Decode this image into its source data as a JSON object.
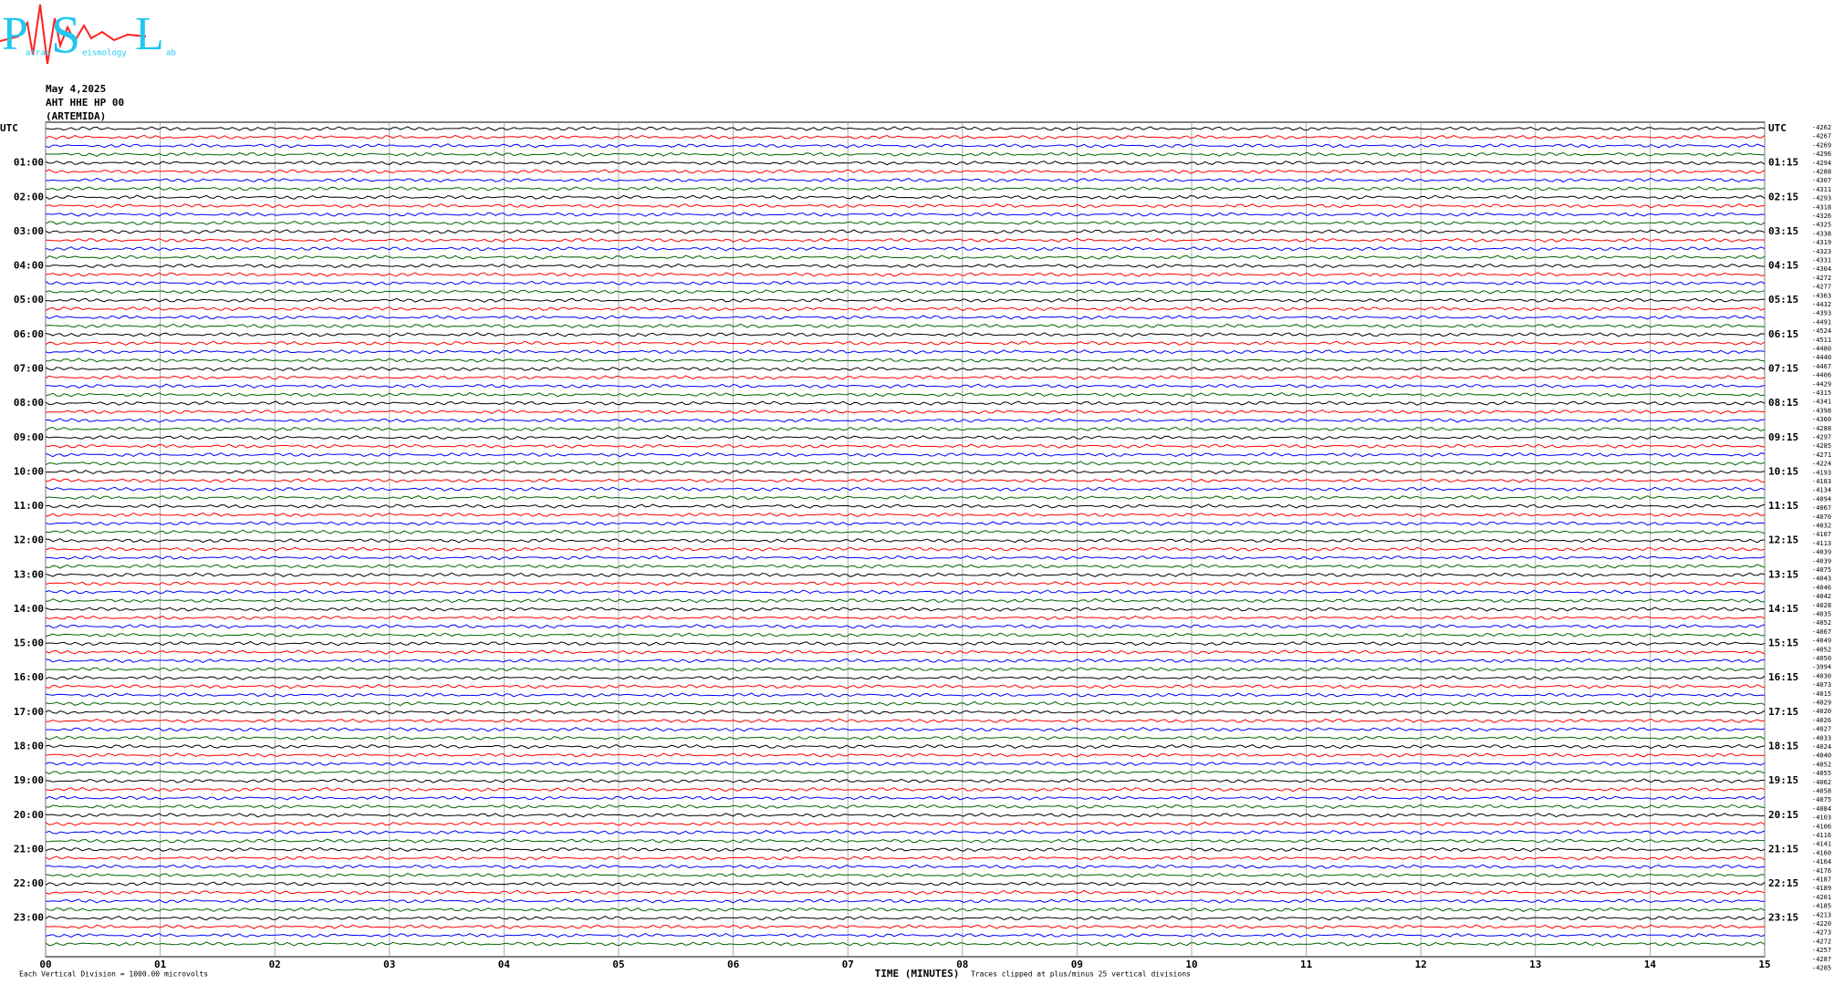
{
  "logo": {
    "letters": [
      "P",
      "S",
      "L"
    ],
    "words": [
      "atras",
      "eismology",
      "ab"
    ]
  },
  "header": {
    "date": "May 4,2025",
    "station": "AHT HHE HP 00",
    "site": "(ARTEMIDA)"
  },
  "chart_data": {
    "type": "helicorder",
    "x_label": "TIME (MINUTES)",
    "note_left": "Each Vertical Division = 1000.00 microvolts",
    "note_right": "Traces clipped at plus/minus 25 vertical divisions",
    "xlim": [
      0,
      15
    ],
    "xticks": [
      {
        "value": 0,
        "label": "00"
      },
      {
        "value": 1,
        "label": "01"
      },
      {
        "value": 2,
        "label": "02"
      },
      {
        "value": 3,
        "label": "03"
      },
      {
        "value": 4,
        "label": "04"
      },
      {
        "value": 5,
        "label": "05"
      },
      {
        "value": 6,
        "label": "06"
      },
      {
        "value": 7,
        "label": "07"
      },
      {
        "value": 8,
        "label": "08"
      },
      {
        "value": 9,
        "label": "09"
      },
      10,
      11,
      12,
      13,
      14,
      15
    ],
    "rows_left": [
      "UTC",
      "01:00",
      "02:00",
      "03:00",
      "04:00",
      "05:00",
      "06:00",
      "07:00",
      "08:00",
      "09:00",
      "10:00",
      "11:00",
      "12:00",
      "13:00",
      "14:00",
      "15:00",
      "16:00",
      "17:00",
      "18:00",
      "19:00",
      "20:00",
      "21:00",
      "22:00",
      "23:00"
    ],
    "rows_right": [
      "UTC",
      "01:15",
      "02:15",
      "03:15",
      "04:15",
      "05:15",
      "06:15",
      "07:15",
      "08:15",
      "09:15",
      "10:15",
      "11:15",
      "12:15",
      "13:15",
      "14:15",
      "15:15",
      "16:15",
      "17:15",
      "18:15",
      "19:15",
      "20:15",
      "21:15",
      "22:15",
      "23:15"
    ],
    "trace_colors": [
      "#000000",
      "#ff0000",
      "#0000ff",
      "#006400"
    ],
    "offsets": [
      -4262,
      -4267,
      -4269,
      -4296,
      -4294,
      -4288,
      -4307,
      -4311,
      -4293,
      -4318,
      -4326,
      -4325,
      -4338,
      -4319,
      -4323,
      -4331,
      -4304,
      -4272,
      -4277,
      -4363,
      -4432,
      -4393,
      -4491,
      -4524,
      -4511,
      -4480,
      -4440,
      -4467,
      -4406,
      -4429,
      -4315,
      -4341,
      -4398,
      -4360,
      -4288,
      -4297,
      -4285,
      -4271,
      -4224,
      -4193,
      -4183,
      -4134,
      -4094,
      -4067,
      -4070,
      -4032,
      -4107,
      -4113,
      -4039,
      -4039,
      -4075,
      -4043,
      -4046,
      -4042,
      -4028,
      -4035,
      -4052,
      -4067,
      -4049,
      -4052,
      -4050,
      -3994,
      -4030,
      -4073,
      -4015,
      -4029,
      -4020,
      -4026,
      -4027,
      -4033,
      -4024,
      -4040,
      -4052,
      -4055,
      -4062,
      -4058,
      -4075,
      -4084,
      -4103,
      -4106,
      -4116,
      -4141,
      -4160,
      -4164,
      -4176,
      -4187,
      -4189,
      -4201,
      -4185,
      -4213,
      -4220,
      -4273,
      -4272,
      -4257,
      -4287,
      -4285
    ]
  }
}
